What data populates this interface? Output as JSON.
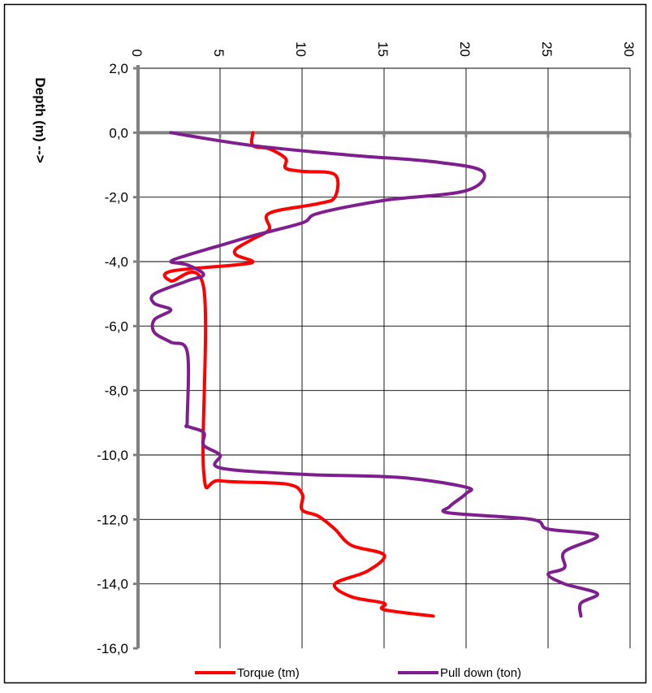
{
  "chart_data": {
    "type": "line",
    "title": "",
    "xlabel": "",
    "ylabel": "Depth (m) -->",
    "x_axis_position": "top",
    "xlim": [
      0,
      30
    ],
    "ylim": [
      -16,
      2
    ],
    "x_ticks": [
      "0",
      "5",
      "10",
      "15",
      "20",
      "25",
      "30"
    ],
    "y_ticks": [
      "2,0",
      "0,0",
      "-2,0",
      "-4,0",
      "-6,0",
      "-8,0",
      "-10,0",
      "-12,0",
      "-14,0",
      "-16,0"
    ],
    "grid": "vertical and horizontal major",
    "legend_position": "bottom",
    "series": [
      {
        "name": "Torque (tm)",
        "color": "#ff0000",
        "points": [
          [
            7.0,
            0.0
          ],
          [
            7.0,
            -0.4
          ],
          [
            8.0,
            -0.5
          ],
          [
            9.0,
            -0.8
          ],
          [
            9.0,
            -1.1
          ],
          [
            10.0,
            -1.2
          ],
          [
            12.0,
            -1.3
          ],
          [
            12.0,
            -2.0
          ],
          [
            11.0,
            -2.2
          ],
          [
            8.0,
            -2.5
          ],
          [
            8.0,
            -3.0
          ],
          [
            7.0,
            -3.3
          ],
          [
            6.0,
            -3.6
          ],
          [
            6.0,
            -3.8
          ],
          [
            7.0,
            -4.0
          ],
          [
            6.0,
            -4.1
          ],
          [
            2.0,
            -4.3
          ],
          [
            2.0,
            -4.6
          ],
          [
            4.0,
            -4.8
          ],
          [
            4.0,
            -10.5
          ],
          [
            5.0,
            -10.8
          ],
          [
            9.0,
            -10.9
          ],
          [
            10.0,
            -11.2
          ],
          [
            10.0,
            -11.7
          ],
          [
            11.0,
            -11.9
          ],
          [
            12.0,
            -12.3
          ],
          [
            13.0,
            -12.8
          ],
          [
            15.0,
            -13.1
          ],
          [
            14.0,
            -13.6
          ],
          [
            12.0,
            -14.0
          ],
          [
            13.0,
            -14.4
          ],
          [
            15.0,
            -14.6
          ],
          [
            15.0,
            -14.8
          ],
          [
            18.0,
            -15.0
          ]
        ]
      },
      {
        "name": "Pull down  (ton)",
        "color": "#7f1f8f",
        "points": [
          [
            2.0,
            0.0
          ],
          [
            7.0,
            -0.4
          ],
          [
            13.0,
            -0.7
          ],
          [
            18.0,
            -0.9
          ],
          [
            21.0,
            -1.2
          ],
          [
            20.0,
            -1.8
          ],
          [
            15.0,
            -2.1
          ],
          [
            11.0,
            -2.5
          ],
          [
            10.0,
            -2.8
          ],
          [
            7.0,
            -3.2
          ],
          [
            5.0,
            -3.5
          ],
          [
            3.0,
            -3.8
          ],
          [
            2.0,
            -4.0
          ],
          [
            3.0,
            -4.1
          ],
          [
            4.0,
            -4.4
          ],
          [
            3.0,
            -4.6
          ],
          [
            1.0,
            -5.0
          ],
          [
            1.0,
            -5.3
          ],
          [
            2.0,
            -5.5
          ],
          [
            1.0,
            -5.8
          ],
          [
            1.0,
            -6.2
          ],
          [
            2.0,
            -6.5
          ],
          [
            3.0,
            -6.8
          ],
          [
            3.0,
            -8.9
          ],
          [
            3.0,
            -9.1
          ],
          [
            4.0,
            -9.3
          ],
          [
            4.0,
            -9.7
          ],
          [
            5.0,
            -10.0
          ],
          [
            5.0,
            -10.4
          ],
          [
            10.0,
            -10.6
          ],
          [
            16.0,
            -10.7
          ],
          [
            20.0,
            -11.0
          ],
          [
            20.0,
            -11.2
          ],
          [
            19.0,
            -11.6
          ],
          [
            19.0,
            -11.8
          ],
          [
            24.0,
            -12.0
          ],
          [
            25.0,
            -12.3
          ],
          [
            28.0,
            -12.5
          ],
          [
            26.0,
            -13.0
          ],
          [
            26.0,
            -13.5
          ],
          [
            25.0,
            -13.7
          ],
          [
            26.0,
            -14.0
          ],
          [
            28.0,
            -14.3
          ],
          [
            27.0,
            -14.6
          ],
          [
            27.0,
            -15.0
          ]
        ]
      }
    ]
  }
}
